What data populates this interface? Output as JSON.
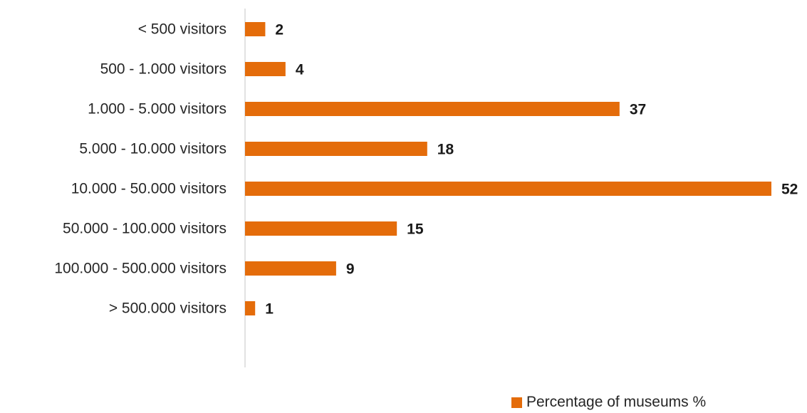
{
  "chart_data": {
    "type": "bar",
    "orientation": "horizontal",
    "categories": [
      "< 500 visitors",
      "500 - 1.000 visitors",
      "1.000 - 5.000 visitors",
      "5.000 - 10.000 visitors",
      "10.000 - 50.000 visitors",
      "50.000 - 100.000 visitors",
      "100.000 - 500.000 visitors",
      "> 500.000 visitors"
    ],
    "series": [
      {
        "name": "Percentage of museums %",
        "values": [
          2,
          4,
          37,
          18,
          52,
          15,
          9,
          1
        ]
      }
    ],
    "data_labels": true,
    "xlim": [
      0,
      52
    ],
    "x_axis_visible": false,
    "grid": false,
    "legend": "bottom-right",
    "color": "#E46C0A"
  }
}
